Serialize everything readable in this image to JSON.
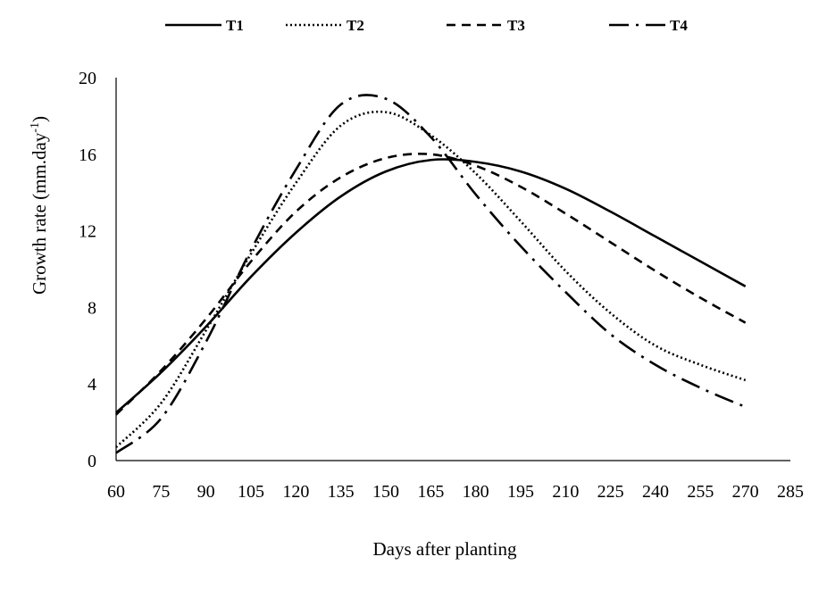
{
  "chart_data": {
    "type": "line",
    "title": "",
    "xlabel": "Days after planting",
    "ylabel": "Growth rate (mm.day",
    "ylabel_superscript": "-1",
    "ylabel_suffix": ")",
    "xlim": [
      60,
      285
    ],
    "ylim": [
      0,
      20
    ],
    "xticks": [
      60,
      75,
      90,
      105,
      120,
      135,
      150,
      165,
      180,
      195,
      210,
      225,
      240,
      255,
      270,
      285
    ],
    "yticks": [
      0,
      4,
      8,
      12,
      16,
      20
    ],
    "grid": false,
    "legend_position": "top",
    "x": [
      60,
      75,
      90,
      105,
      120,
      135,
      150,
      165,
      180,
      195,
      210,
      225,
      240,
      255,
      270
    ],
    "series": [
      {
        "name": "T1",
        "dash": "solid",
        "values": [
          2.5,
          4.6,
          7.0,
          9.6,
          11.9,
          13.8,
          15.1,
          15.7,
          15.6,
          15.1,
          14.2,
          13.0,
          11.7,
          10.4,
          9.1
        ]
      },
      {
        "name": "T2",
        "dash": "dotted",
        "values": [
          0.7,
          3.0,
          6.8,
          10.8,
          14.5,
          17.5,
          18.2,
          17.0,
          15.0,
          12.5,
          9.9,
          7.7,
          6.0,
          5.0,
          4.2
        ]
      },
      {
        "name": "T3",
        "dash": "dashed",
        "values": [
          2.4,
          4.7,
          7.4,
          10.4,
          13.0,
          14.8,
          15.8,
          16.0,
          15.4,
          14.3,
          12.9,
          11.4,
          9.9,
          8.5,
          7.2
        ]
      },
      {
        "name": "T4",
        "dash": "dashdot",
        "values": [
          0.4,
          2.2,
          6.2,
          11.0,
          15.2,
          18.6,
          18.9,
          16.9,
          13.9,
          11.2,
          8.8,
          6.6,
          5.0,
          3.8,
          2.8
        ]
      }
    ]
  }
}
